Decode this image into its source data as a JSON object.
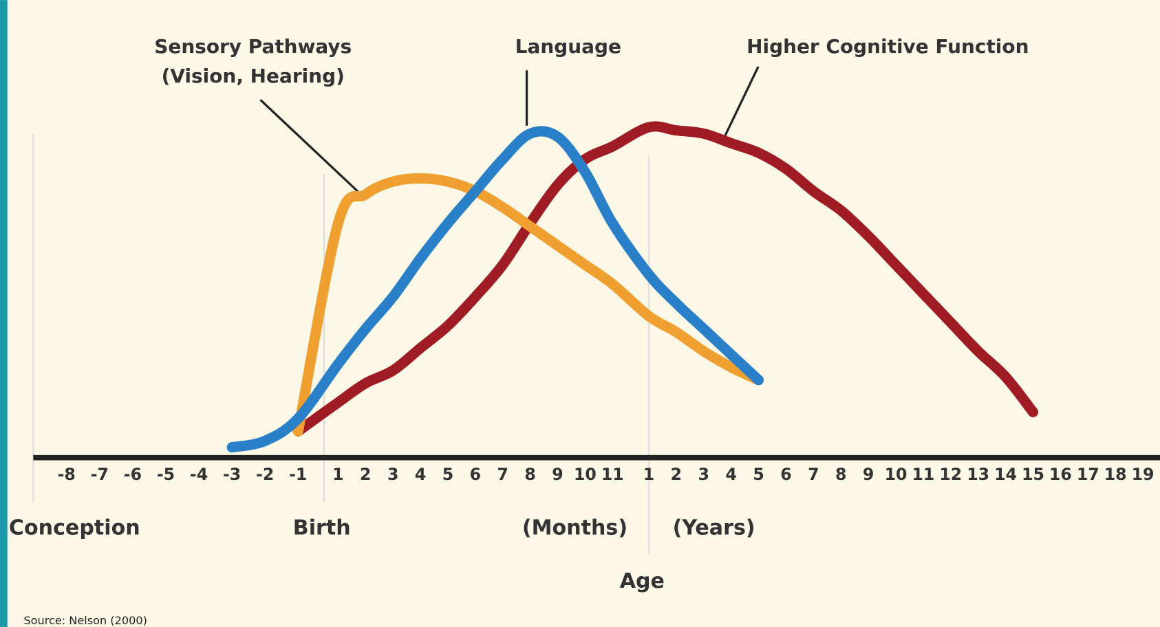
{
  "chart_data": {
    "type": "line",
    "categories": [
      "-8",
      "-7",
      "-6",
      "-5",
      "-4",
      "-3",
      "-2",
      "-1",
      "1",
      "2",
      "3",
      "4",
      "5",
      "6",
      "7",
      "8",
      "9",
      "10",
      "11",
      "1",
      "2",
      "3",
      "4",
      "5",
      "6",
      "7",
      "8",
      "9",
      "10",
      "11",
      "12",
      "13",
      "14",
      "15",
      "16",
      "17",
      "18",
      "19"
    ],
    "series": [
      {
        "name": "Sensory Pathways",
        "color": "#f0a030",
        "values": [
          null,
          null,
          null,
          null,
          null,
          null,
          null,
          5,
          70,
          79,
          83,
          84,
          83,
          80,
          75,
          69,
          63,
          57,
          51,
          41,
          36,
          30,
          25,
          21,
          null,
          null,
          null,
          null,
          null,
          null,
          null,
          null,
          null,
          null,
          null,
          null,
          null,
          null
        ]
      },
      {
        "name": "Language",
        "color": "#2a80c8",
        "values": [
          null,
          null,
          null,
          null,
          null,
          0,
          2,
          9,
          26,
          37,
          47,
          59,
          70,
          80,
          90,
          98,
          97,
          86,
          70,
          54,
          45,
          37,
          29,
          21,
          null,
          null,
          null,
          null,
          null,
          null,
          null,
          null,
          null,
          null,
          null,
          null,
          null,
          null
        ]
      },
      {
        "name": "Higher Cognitive Function",
        "color": "#a01c24",
        "values": [
          null,
          null,
          null,
          null,
          null,
          null,
          null,
          5,
          14,
          20,
          24,
          31,
          38,
          47,
          57,
          70,
          82,
          90,
          94,
          100,
          99,
          98,
          95,
          92,
          87,
          80,
          74,
          66,
          57,
          48,
          39,
          30,
          22,
          11,
          null,
          null,
          null,
          null
        ]
      }
    ],
    "ylim": [
      0,
      100
    ],
    "series_note": "(Vision, Hearing)",
    "period_labels": [
      "Conception",
      "Birth",
      "(Months)",
      "(Years)"
    ],
    "x_label": "Age",
    "source": "Source: Nelson (2000)"
  }
}
